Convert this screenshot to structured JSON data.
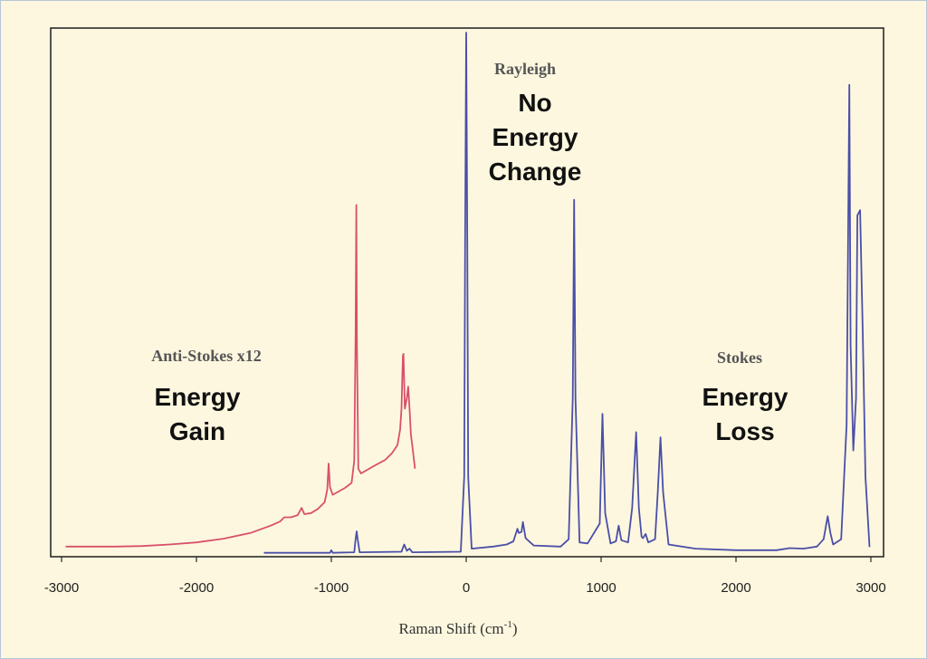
{
  "chart_data": {
    "type": "line",
    "title": "",
    "xlabel": "Raman Shift (cm",
    "xlabel_sup": "-1",
    "xlabel_end": ")",
    "ylabel": "",
    "xlim": [
      -3000,
      3000
    ],
    "ylim": [
      0,
      100
    ],
    "grid": false,
    "x_ticks": [
      "-3000",
      "-2000",
      "-1000",
      "0",
      "1000",
      "2000",
      "3000"
    ],
    "x_tick_values": [
      -3000,
      -2000,
      -1000,
      0,
      1000,
      2000,
      3000
    ],
    "series": [
      {
        "color": "#d9506a",
        "points": [
          [
            -2970,
            1.6
          ],
          [
            -2800,
            1.6
          ],
          [
            -2600,
            1.6
          ],
          [
            -2400,
            1.7
          ],
          [
            -2200,
            2.0
          ],
          [
            -2000,
            2.4
          ],
          [
            -1800,
            3.1
          ],
          [
            -1600,
            4.2
          ],
          [
            -1450,
            5.6
          ],
          [
            -1380,
            6.4
          ],
          [
            -1350,
            7.2
          ],
          [
            -1300,
            7.2
          ],
          [
            -1250,
            7.6
          ],
          [
            -1220,
            9.0
          ],
          [
            -1200,
            7.8
          ],
          [
            -1150,
            8.0
          ],
          [
            -1100,
            8.8
          ],
          [
            -1050,
            10.1
          ],
          [
            -1030,
            12.5
          ],
          [
            -1020,
            17.5
          ],
          [
            -1010,
            13.0
          ],
          [
            -990,
            11.5
          ],
          [
            -900,
            12.8
          ],
          [
            -850,
            13.8
          ],
          [
            -830,
            18.0
          ],
          [
            -820,
            42.0
          ],
          [
            -815,
            67.0
          ],
          [
            -810,
            40.0
          ],
          [
            -800,
            16.5
          ],
          [
            -780,
            15.6
          ],
          [
            -700,
            16.8
          ],
          [
            -600,
            18.2
          ],
          [
            -550,
            19.5
          ],
          [
            -510,
            21.0
          ],
          [
            -490,
            24.0
          ],
          [
            -480,
            28.0
          ],
          [
            -470,
            38.0
          ],
          [
            -465,
            38.5
          ],
          [
            -455,
            28.0
          ],
          [
            -440,
            30.0
          ],
          [
            -430,
            32.2
          ],
          [
            -420,
            28.0
          ],
          [
            -410,
            23.0
          ],
          [
            -400,
            21.0
          ],
          [
            -380,
            16.5
          ]
        ]
      },
      {
        "color": "#4a4fa8",
        "points": [
          [
            -1500,
            0.4
          ],
          [
            -1100,
            0.4
          ],
          [
            -1010,
            0.4
          ],
          [
            -1000,
            0.9
          ],
          [
            -990,
            0.4
          ],
          [
            -830,
            0.5
          ],
          [
            -820,
            3.0
          ],
          [
            -812,
            4.5
          ],
          [
            -805,
            3.0
          ],
          [
            -790,
            0.5
          ],
          [
            -480,
            0.6
          ],
          [
            -460,
            2.0
          ],
          [
            -440,
            0.8
          ],
          [
            -420,
            1.2
          ],
          [
            -400,
            0.5
          ],
          [
            -40,
            0.6
          ],
          [
            -15,
            15.0
          ],
          [
            -8,
            60.0
          ],
          [
            0,
            100
          ],
          [
            8,
            60.0
          ],
          [
            15,
            15.0
          ],
          [
            40,
            1.2
          ],
          [
            200,
            1.6
          ],
          [
            300,
            2.0
          ],
          [
            350,
            2.6
          ],
          [
            380,
            5.0
          ],
          [
            390,
            4.2
          ],
          [
            410,
            4.4
          ],
          [
            420,
            6.3
          ],
          [
            440,
            3.2
          ],
          [
            500,
            1.8
          ],
          [
            700,
            1.6
          ],
          [
            760,
            3.0
          ],
          [
            790,
            30.0
          ],
          [
            800,
            68.0
          ],
          [
            810,
            30.0
          ],
          [
            840,
            2.4
          ],
          [
            900,
            2.2
          ],
          [
            990,
            6.0
          ],
          [
            1010,
            27.0
          ],
          [
            1030,
            8.0
          ],
          [
            1070,
            2.2
          ],
          [
            1110,
            2.6
          ],
          [
            1130,
            5.6
          ],
          [
            1150,
            2.8
          ],
          [
            1200,
            2.4
          ],
          [
            1230,
            9.0
          ],
          [
            1260,
            23.5
          ],
          [
            1280,
            9.0
          ],
          [
            1300,
            3.5
          ],
          [
            1310,
            3.2
          ],
          [
            1330,
            4.0
          ],
          [
            1350,
            2.4
          ],
          [
            1400,
            3.0
          ],
          [
            1420,
            12.0
          ],
          [
            1440,
            22.5
          ],
          [
            1460,
            12.0
          ],
          [
            1500,
            2.0
          ],
          [
            1700,
            1.2
          ],
          [
            2000,
            0.9
          ],
          [
            2300,
            0.9
          ],
          [
            2400,
            1.3
          ],
          [
            2500,
            1.2
          ],
          [
            2600,
            1.6
          ],
          [
            2650,
            3.0
          ],
          [
            2680,
            7.4
          ],
          [
            2700,
            4.2
          ],
          [
            2720,
            2.0
          ],
          [
            2780,
            3.0
          ],
          [
            2820,
            25.0
          ],
          [
            2840,
            90.0
          ],
          [
            2850,
            40.0
          ],
          [
            2870,
            20.0
          ],
          [
            2890,
            30.0
          ],
          [
            2900,
            65.0
          ],
          [
            2920,
            66.0
          ],
          [
            2940,
            42.0
          ],
          [
            2960,
            15.0
          ],
          [
            2990,
            1.5
          ]
        ]
      }
    ],
    "annotations": {
      "rayleigh": "Rayleigh",
      "rayleigh_desc": [
        "No",
        "Energy",
        "Change"
      ],
      "anti_stokes": "Anti-Stokes x12",
      "anti_stokes_desc": [
        "Energy",
        "Gain"
      ],
      "stokes": "Stokes",
      "stokes_desc": [
        "Energy",
        "Loss"
      ]
    }
  }
}
